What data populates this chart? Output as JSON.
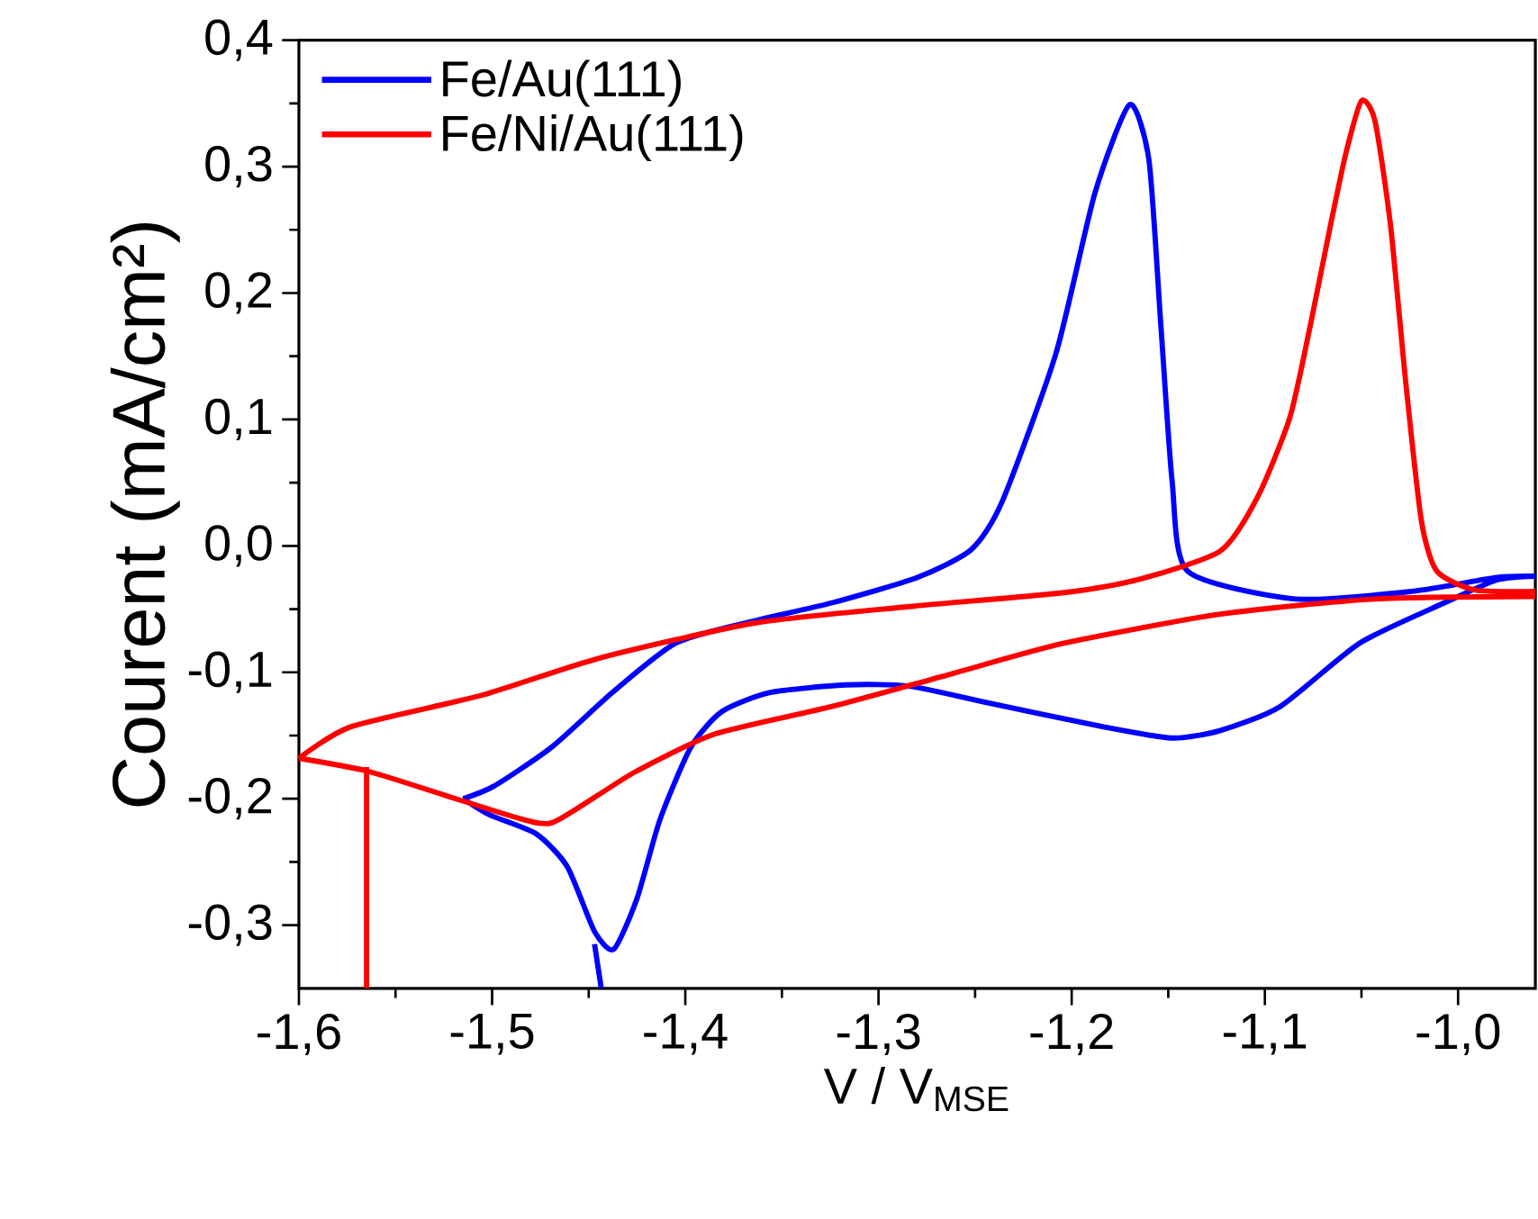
{
  "chart_data": {
    "type": "line",
    "xlabel": "V / V$_{MSE}$",
    "ylabel": "Courent (mA/cm²)",
    "xlim": [
      -1.6,
      -0.96
    ],
    "ylim": [
      -0.35,
      0.4
    ],
    "xticks": [
      {
        "value": -1.6,
        "label": "-1,6"
      },
      {
        "value": -1.5,
        "label": "-1,5"
      },
      {
        "value": -1.4,
        "label": "-1,4"
      },
      {
        "value": -1.3,
        "label": "-1,3"
      },
      {
        "value": -1.2,
        "label": "-1,2"
      },
      {
        "value": -1.1,
        "label": "-1,1"
      },
      {
        "value": -1.0,
        "label": "-1,0"
      }
    ],
    "yticks": [
      {
        "value": -0.3,
        "label": "-0,3"
      },
      {
        "value": -0.2,
        "label": "-0,2"
      },
      {
        "value": -0.1,
        "label": "-0,1"
      },
      {
        "value": 0.0,
        "label": "0,0"
      },
      {
        "value": 0.1,
        "label": "0,1"
      },
      {
        "value": 0.2,
        "label": "0,2"
      },
      {
        "value": 0.3,
        "label": "0,3"
      },
      {
        "value": 0.4,
        "label": "0,4"
      }
    ],
    "legend": "top left",
    "grid": false,
    "marker": "none",
    "line_style": "solid",
    "series": [
      {
        "name": "Fe/Au(111)",
        "color": "#0000ff",
        "x": [
          -1.515,
          -1.499,
          -1.469,
          -1.437,
          -1.405,
          -1.369,
          -1.324,
          -1.28,
          -1.252,
          -1.236,
          -1.208,
          -1.188,
          -1.17,
          -1.16,
          -1.154,
          -1.148,
          -1.14,
          -1.084,
          -1.024,
          -0.98,
          -0.96,
          null,
          -0.96,
          -0.98,
          -1.007,
          -1.051,
          -1.092,
          -1.123,
          -1.148,
          -1.184,
          -1.244,
          -1.284,
          -1.317,
          -1.356,
          -1.381,
          -1.397,
          -1.413,
          -1.425,
          -1.437,
          -1.447,
          -1.461,
          -1.477,
          -1.501,
          -1.515,
          null,
          -1.447,
          -1.4435
        ],
        "values": [
          -0.2,
          -0.19,
          -0.159,
          -0.115,
          -0.077,
          -0.061,
          -0.045,
          -0.025,
          -0.003,
          0.035,
          0.153,
          0.279,
          0.349,
          0.305,
          0.178,
          0.051,
          -0.02,
          -0.042,
          -0.036,
          -0.025,
          -0.024,
          null,
          -0.024,
          -0.027,
          -0.045,
          -0.077,
          -0.127,
          -0.146,
          -0.152,
          -0.143,
          -0.124,
          -0.111,
          -0.11,
          -0.116,
          -0.131,
          -0.159,
          -0.216,
          -0.279,
          -0.319,
          -0.305,
          -0.254,
          -0.228,
          -0.213,
          -0.2,
          null,
          -0.315,
          -0.35
        ]
      },
      {
        "name": "Fe/Ni/Au(111)",
        "color": "#ff0000",
        "x": [
          -1.6,
          -1.573,
          -1.505,
          -1.445,
          -1.364,
          -1.284,
          -1.204,
          -1.164,
          -1.123,
          -1.104,
          -1.087,
          -1.076,
          -1.066,
          -1.058,
          -1.05,
          -1.043,
          -1.035,
          -1.027,
          -1.019,
          -1.011,
          -0.991,
          -0.96,
          null,
          -0.96,
          -1.043,
          -1.123,
          -1.204,
          -1.264,
          -1.324,
          -1.385,
          -1.425,
          -1.445,
          -1.469,
          -1.485,
          -1.525,
          -1.565,
          -1.6,
          null,
          -1.565,
          -1.565
        ],
        "values": [
          -0.168,
          -0.143,
          -0.118,
          -0.089,
          -0.061,
          -0.048,
          -0.037,
          -0.026,
          -0.004,
          0.038,
          0.102,
          0.178,
          0.254,
          0.311,
          0.352,
          0.336,
          0.254,
          0.128,
          0.02,
          -0.02,
          -0.035,
          -0.036,
          null,
          -0.04,
          -0.042,
          -0.054,
          -0.077,
          -0.102,
          -0.127,
          -0.149,
          -0.178,
          -0.197,
          -0.219,
          -0.216,
          -0.197,
          -0.178,
          -0.168,
          null,
          -0.175,
          -0.35
        ]
      }
    ]
  }
}
